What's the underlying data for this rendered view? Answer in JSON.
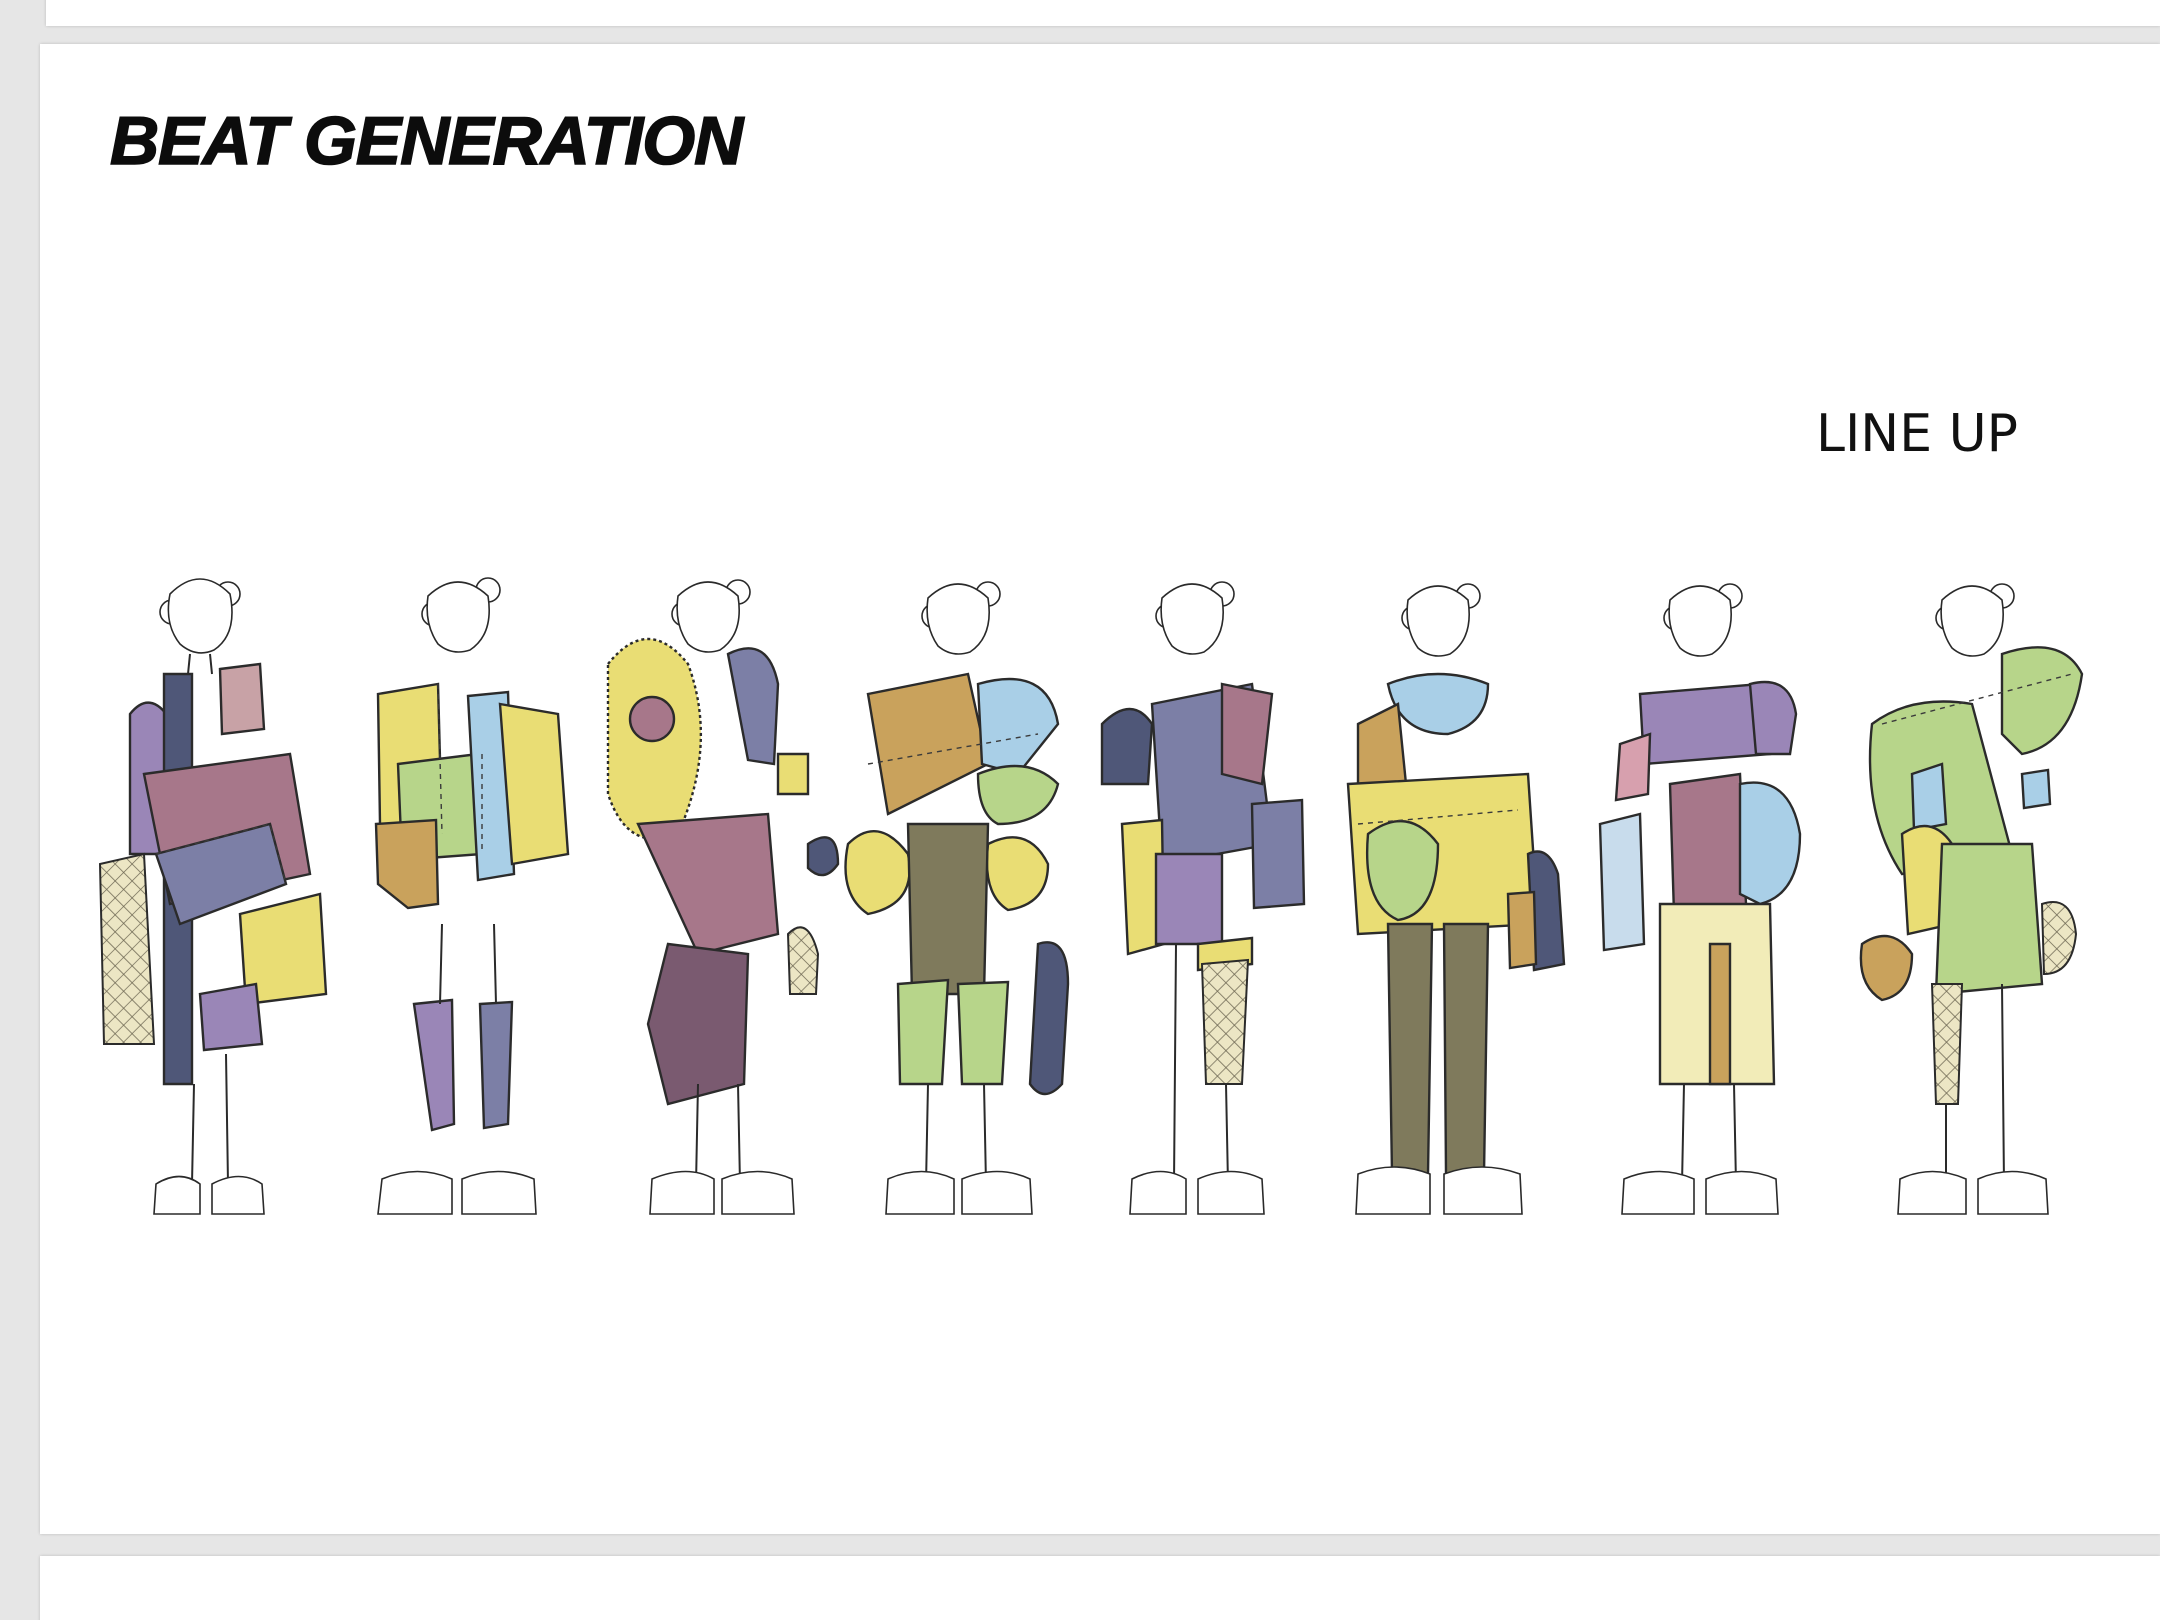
{
  "document": {
    "title": "BEAT GENERATION",
    "subtitle": "LINE UP"
  },
  "lineup": {
    "figure_count": 8,
    "palette": [
      "#a7778a",
      "#7c7fa6",
      "#9a86b7",
      "#e9dd74",
      "#c9a25c",
      "#a9cfe7",
      "#b7d58a",
      "#7f7a5c"
    ]
  }
}
